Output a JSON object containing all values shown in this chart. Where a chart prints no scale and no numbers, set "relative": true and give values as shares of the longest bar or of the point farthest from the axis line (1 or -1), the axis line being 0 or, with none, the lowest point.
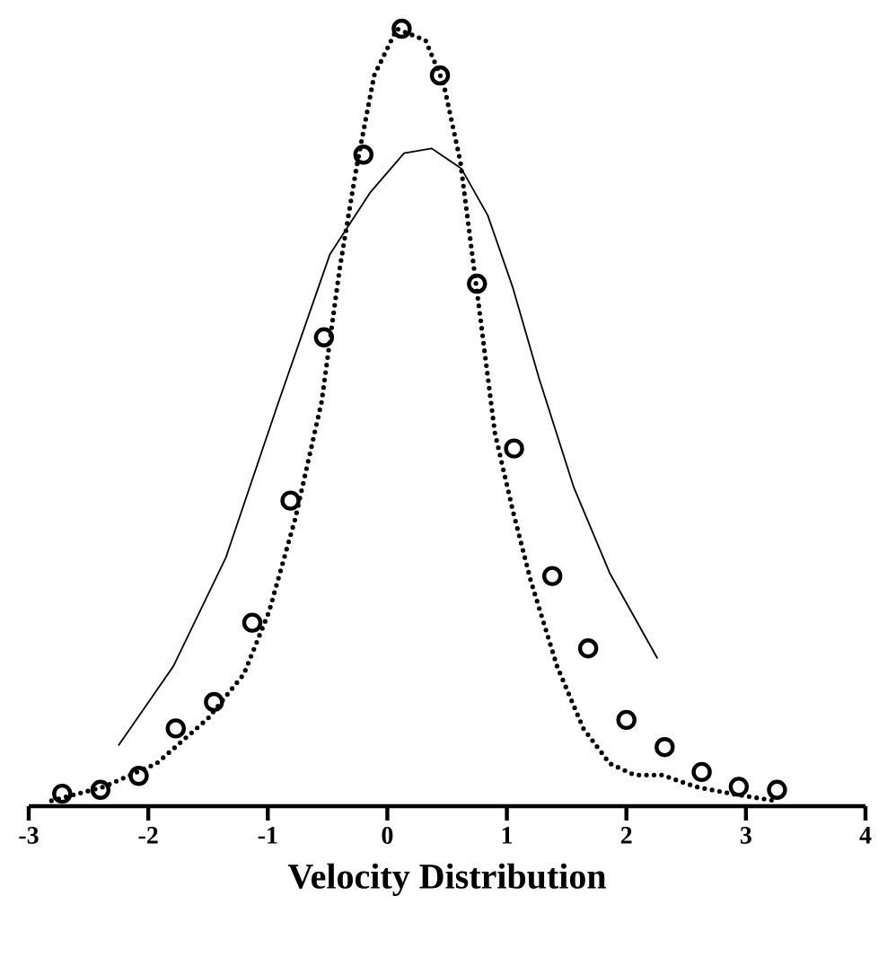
{
  "chart_data": {
    "type": "scatter",
    "xlabel": "Velocity Distribution",
    "xlim": [
      -3,
      4
    ],
    "xticks": [
      -3,
      -2,
      -1,
      0,
      1,
      2,
      3,
      4
    ],
    "relative": true,
    "series": [
      {
        "type": "line",
        "color": "#000000",
        "line_style": "dotted",
        "marker": "none",
        "x": [
          -2.81,
          -2.37,
          -1.93,
          -1.5,
          -1.2,
          -0.99,
          -0.77,
          -0.55,
          -0.4,
          -0.26,
          -0.11,
          0.08,
          0.32,
          0.47,
          0.61,
          0.76,
          0.9,
          1.05,
          1.2,
          1.42,
          1.64,
          1.86,
          2.07,
          2.3,
          2.58,
          2.88,
          3.24
        ],
        "values": [
          0.007,
          0.025,
          0.055,
          0.113,
          0.17,
          0.25,
          0.37,
          0.52,
          0.69,
          0.82,
          0.94,
          1.0,
          0.985,
          0.93,
          0.83,
          0.65,
          0.48,
          0.38,
          0.29,
          0.18,
          0.1,
          0.055,
          0.04,
          0.04,
          0.025,
          0.016,
          0.007
        ]
      },
      {
        "type": "line",
        "color": "#000000",
        "line_style": "solid",
        "marker": "none",
        "x": [
          -2.25,
          -1.79,
          -1.35,
          -0.91,
          -0.48,
          -0.14,
          0.14,
          0.37,
          0.62,
          0.84,
          1.05,
          1.27,
          1.56,
          1.86,
          2.26
        ],
        "values": [
          0.078,
          0.18,
          0.32,
          0.52,
          0.71,
          0.79,
          0.84,
          0.846,
          0.82,
          0.76,
          0.667,
          0.55,
          0.41,
          0.3,
          0.19
        ]
      },
      {
        "color": "#000000",
        "marker": "circle",
        "x": [
          -2.72,
          -2.4,
          -2.08,
          -1.77,
          -1.45,
          -1.13,
          -0.81,
          -0.53,
          -0.2,
          0.12,
          0.44,
          0.75,
          1.06,
          1.38,
          1.68,
          2.0,
          2.32,
          2.63,
          2.94,
          3.26
        ],
        "values": [
          0.016,
          0.021,
          0.039,
          0.1,
          0.134,
          0.236,
          0.393,
          0.603,
          0.838,
          1.0,
          0.94,
          0.672,
          0.46,
          0.296,
          0.203,
          0.111,
          0.076,
          0.044,
          0.025,
          0.021
        ]
      }
    ]
  }
}
